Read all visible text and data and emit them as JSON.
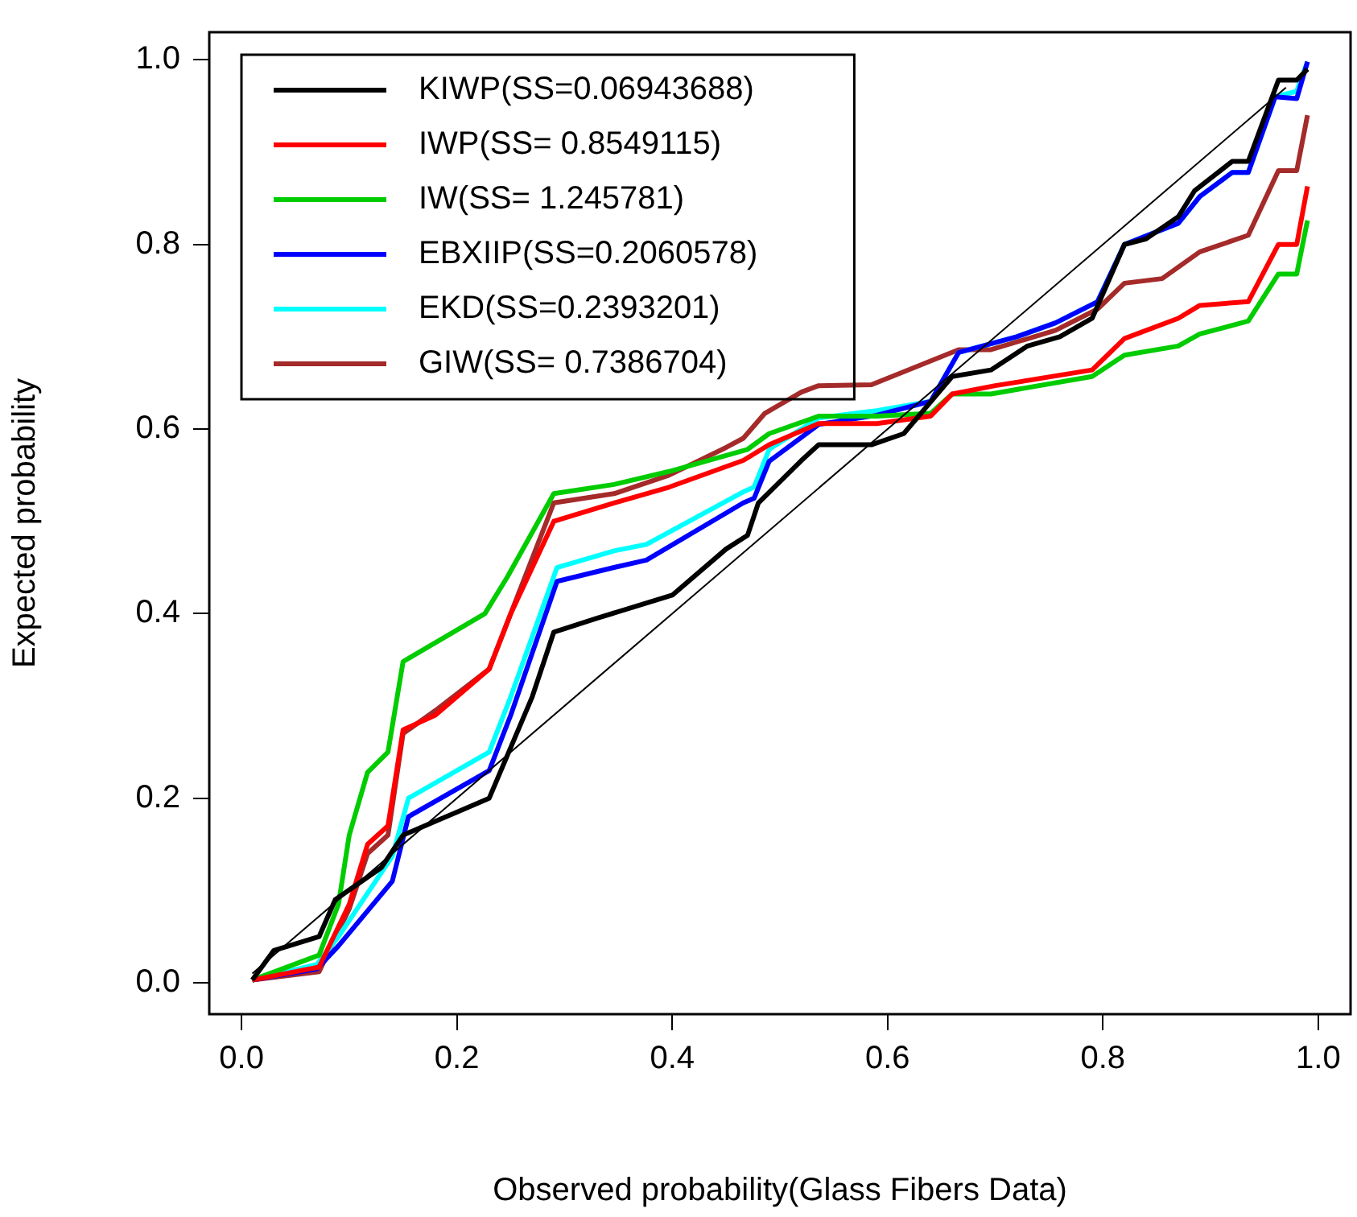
{
  "chart_data": {
    "type": "line",
    "xlabel": "Observed probability(Glass Fibers Data)",
    "ylabel": "Expected probability",
    "xlim": [
      -0.03,
      1.03
    ],
    "ylim": [
      -0.034,
      1.03
    ],
    "xticks": [
      {
        "value": 0,
        "label": "0.0"
      },
      0.2,
      0.4,
      0.6,
      0.8,
      {
        "value": 1,
        "label": "1.0"
      }
    ],
    "yticks": [
      {
        "value": 0,
        "label": "0.0"
      },
      0.2,
      0.4,
      0.6,
      0.8,
      {
        "value": 1,
        "label": "1.0"
      }
    ],
    "grid": false,
    "legend": "top left",
    "marker": "none",
    "line_style": "solid",
    "series": [
      {
        "color": "#000000",
        "x": [
          0.01,
          0.97
        ],
        "values": [
          0.01,
          0.97
        ]
      },
      {
        "name": "KIWP(SS=0.06943688)",
        "color": "#000000",
        "x": [
          0.01,
          0.03,
          0.072,
          0.087,
          0.13,
          0.15,
          0.2,
          0.23,
          0.27,
          0.29,
          0.33,
          0.4,
          0.45,
          0.47,
          0.48,
          0.52,
          0.536,
          0.585,
          0.615,
          0.66,
          0.696,
          0.73,
          0.76,
          0.79,
          0.82,
          0.84,
          0.87,
          0.885,
          0.92,
          0.935,
          0.963,
          0.98,
          0.99
        ],
        "values": [
          0.003,
          0.035,
          0.05,
          0.09,
          0.125,
          0.16,
          0.185,
          0.2,
          0.31,
          0.38,
          0.395,
          0.42,
          0.47,
          0.485,
          0.52,
          0.566,
          0.583,
          0.583,
          0.595,
          0.657,
          0.664,
          0.69,
          0.7,
          0.72,
          0.8,
          0.806,
          0.83,
          0.858,
          0.89,
          0.89,
          0.978,
          0.978,
          0.99
        ]
      },
      {
        "name": "IWP(SS= 0.8549115)",
        "color": "#ff0000",
        "x": [
          0.01,
          0.072,
          0.1,
          0.117,
          0.136,
          0.15,
          0.18,
          0.23,
          0.25,
          0.29,
          0.346,
          0.397,
          0.466,
          0.49,
          0.536,
          0.59,
          0.64,
          0.66,
          0.7,
          0.79,
          0.82,
          0.87,
          0.89,
          0.935,
          0.963,
          0.98,
          0.99
        ],
        "values": [
          0.003,
          0.017,
          0.085,
          0.15,
          0.17,
          0.274,
          0.29,
          0.34,
          0.4,
          0.5,
          0.52,
          0.537,
          0.566,
          0.583,
          0.606,
          0.606,
          0.614,
          0.638,
          0.647,
          0.664,
          0.698,
          0.72,
          0.734,
          0.738,
          0.8,
          0.8,
          0.863
        ]
      },
      {
        "name": "IW(SS= 1.245781)",
        "color": "#00cc00",
        "x": [
          0.01,
          0.072,
          0.09,
          0.1,
          0.117,
          0.136,
          0.15,
          0.226,
          0.247,
          0.29,
          0.346,
          0.397,
          0.47,
          0.49,
          0.536,
          0.59,
          0.64,
          0.66,
          0.696,
          0.79,
          0.82,
          0.87,
          0.89,
          0.935,
          0.963,
          0.98,
          0.99
        ],
        "values": [
          0.003,
          0.03,
          0.085,
          0.16,
          0.228,
          0.25,
          0.348,
          0.4,
          0.44,
          0.53,
          0.54,
          0.554,
          0.578,
          0.595,
          0.614,
          0.614,
          0.617,
          0.638,
          0.638,
          0.657,
          0.68,
          0.69,
          0.703,
          0.717,
          0.768,
          0.768,
          0.826
        ]
      },
      {
        "name": "EBXIIP(SS=0.2060578)",
        "color": "#0000ff",
        "x": [
          0.01,
          0.07,
          0.09,
          0.14,
          0.155,
          0.23,
          0.25,
          0.293,
          0.346,
          0.376,
          0.466,
          0.476,
          0.49,
          0.536,
          0.59,
          0.64,
          0.666,
          0.72,
          0.756,
          0.795,
          0.82,
          0.87,
          0.89,
          0.92,
          0.935,
          0.96,
          0.98,
          0.99
        ],
        "values": [
          0.003,
          0.015,
          0.04,
          0.11,
          0.18,
          0.23,
          0.29,
          0.435,
          0.45,
          0.458,
          0.52,
          0.525,
          0.565,
          0.605,
          0.615,
          0.63,
          0.683,
          0.7,
          0.715,
          0.738,
          0.8,
          0.823,
          0.852,
          0.878,
          0.878,
          0.96,
          0.958,
          0.998
        ]
      },
      {
        "name": "EKD(SS=0.2393201)",
        "color": "#00ffff",
        "x": [
          0.01,
          0.07,
          0.09,
          0.14,
          0.155,
          0.23,
          0.25,
          0.293,
          0.346,
          0.376,
          0.466,
          0.476,
          0.49,
          0.536,
          0.59,
          0.64,
          0.666,
          0.72,
          0.756,
          0.795,
          0.82,
          0.87,
          0.89,
          0.92,
          0.935,
          0.96,
          0.98,
          0.99
        ],
        "values": [
          0.003,
          0.02,
          0.05,
          0.137,
          0.2,
          0.25,
          0.31,
          0.45,
          0.468,
          0.475,
          0.532,
          0.537,
          0.578,
          0.612,
          0.62,
          0.63,
          0.683,
          0.7,
          0.715,
          0.738,
          0.8,
          0.823,
          0.852,
          0.878,
          0.878,
          0.96,
          0.966,
          0.998
        ]
      },
      {
        "name": "GIW(SS= 0.7386704)",
        "color": "#a52a2a",
        "x": [
          0.01,
          0.072,
          0.1,
          0.117,
          0.136,
          0.15,
          0.18,
          0.23,
          0.25,
          0.29,
          0.346,
          0.397,
          0.45,
          0.466,
          0.486,
          0.52,
          0.536,
          0.585,
          0.666,
          0.696,
          0.756,
          0.795,
          0.82,
          0.855,
          0.89,
          0.935,
          0.963,
          0.98,
          0.99
        ],
        "values": [
          0.003,
          0.012,
          0.08,
          0.14,
          0.16,
          0.27,
          0.295,
          0.34,
          0.4,
          0.52,
          0.53,
          0.55,
          0.58,
          0.59,
          0.617,
          0.64,
          0.647,
          0.648,
          0.686,
          0.686,
          0.707,
          0.73,
          0.758,
          0.763,
          0.792,
          0.81,
          0.88,
          0.88,
          0.94
        ]
      }
    ]
  }
}
